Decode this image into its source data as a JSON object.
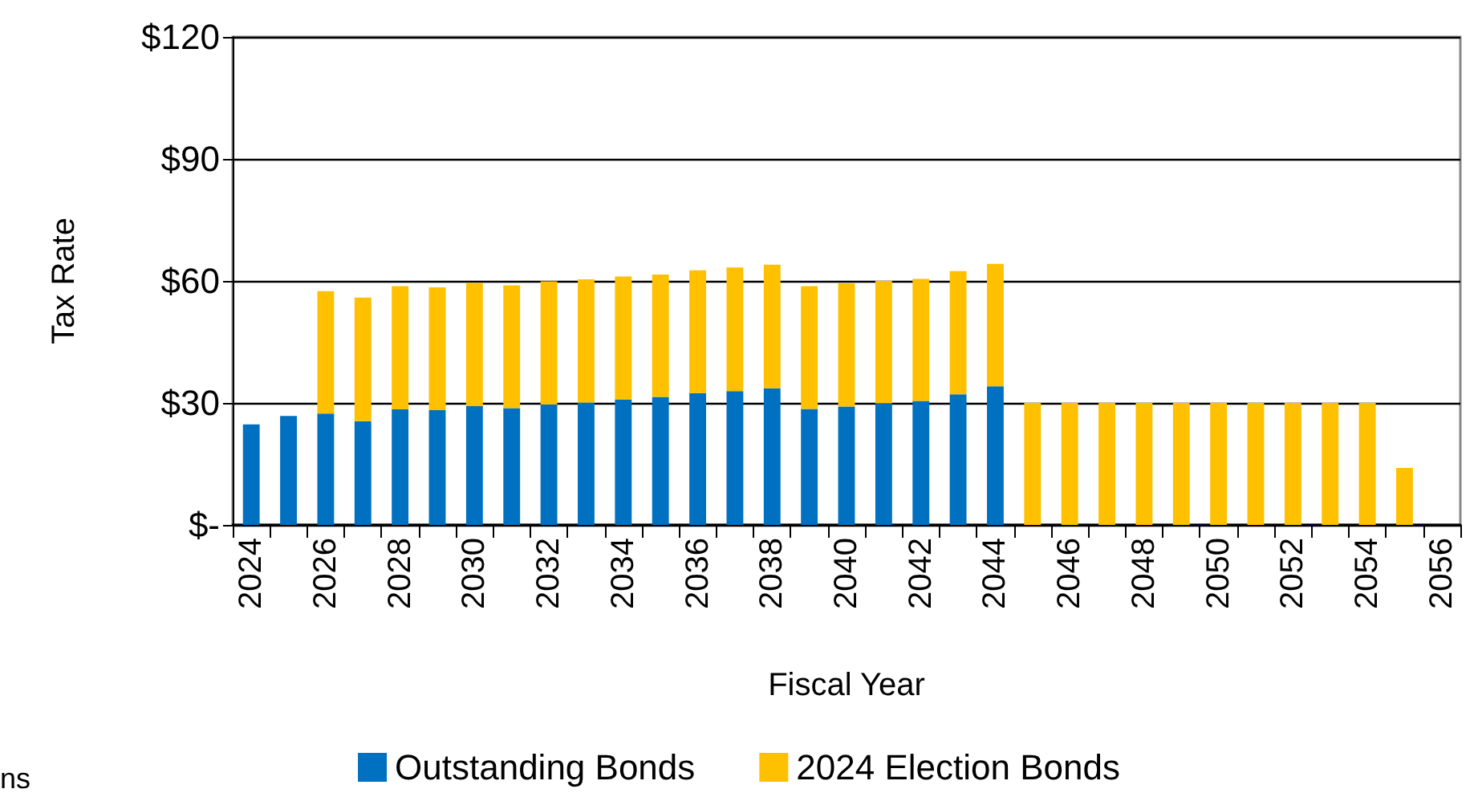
{
  "chart_data": {
    "type": "bar",
    "stacked": true,
    "xlabel": "Fiscal Year",
    "ylabel": "Tax Rate",
    "categories": [
      "2024",
      null,
      "2026",
      null,
      "2028",
      null,
      "2030",
      null,
      "2032",
      null,
      "2034",
      null,
      "2036",
      null,
      "2038",
      null,
      "2040",
      null,
      "2042",
      null,
      "2044",
      null,
      "2046",
      null,
      "2048",
      null,
      "2050",
      null,
      "2052",
      null,
      "2054",
      null,
      "2056"
    ],
    "series": [
      {
        "name": "Outstanding Bonds",
        "color": "#0070c0",
        "values": [
          24.7,
          26.8,
          27.4,
          25.5,
          28.4,
          28.2,
          29.2,
          28.7,
          29.6,
          30.1,
          30.8,
          31.5,
          32.4,
          32.9,
          33.6,
          28.5,
          29.1,
          29.9,
          30.5,
          32.1,
          34.1,
          null,
          null,
          null,
          null,
          null,
          null,
          null,
          null,
          null,
          null,
          null,
          null
        ]
      },
      {
        "name": "2024 Election Bonds",
        "color": "#ffc000",
        "values": [
          null,
          null,
          30.1,
          30.4,
          30.3,
          30.2,
          30.3,
          30.2,
          30.3,
          30.3,
          30.3,
          30.1,
          30.2,
          30.4,
          30.4,
          30.2,
          30.3,
          30.1,
          30.0,
          30.3,
          30.1,
          30,
          30,
          30,
          30,
          30,
          30,
          30,
          30,
          30,
          30,
          14,
          null
        ]
      }
    ],
    "ylim": [
      0,
      120
    ],
    "yticks": [
      {
        "value": 0,
        "label": "$-"
      },
      {
        "value": 30,
        "label": "$30"
      },
      {
        "value": 60,
        "label": "$60"
      },
      {
        "value": 90,
        "label": "$90"
      },
      {
        "value": 120,
        "label": "$120"
      }
    ],
    "grid": "y",
    "legend": "bottom",
    "annotations": [
      "ns"
    ]
  }
}
